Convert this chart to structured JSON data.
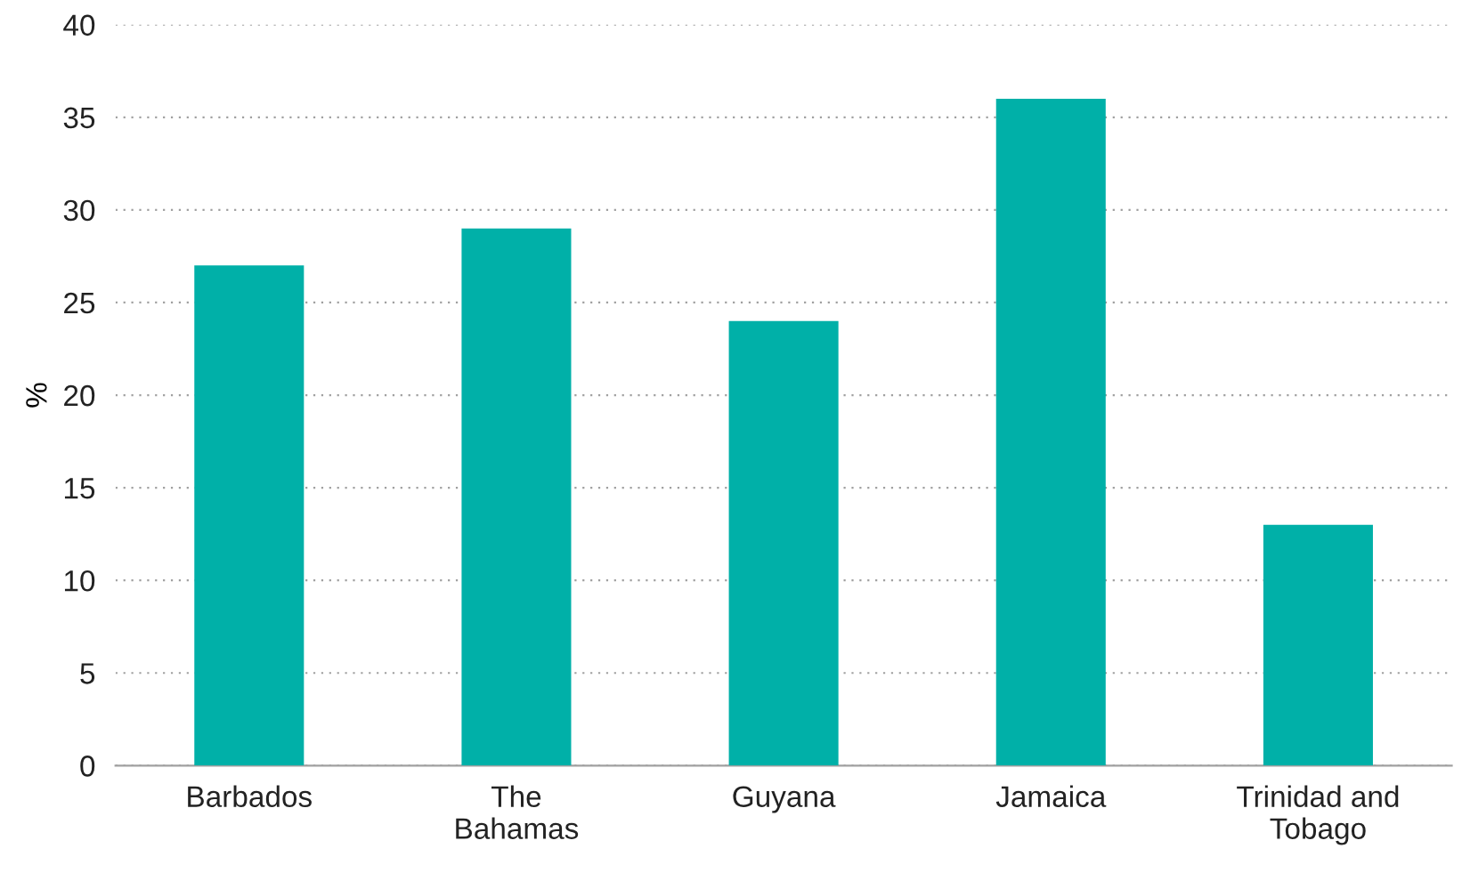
{
  "chart_data": {
    "type": "bar",
    "ylabel": "%",
    "categories": [
      "Barbados",
      "The\nBahamas",
      "Guyana",
      "Jamaica",
      "Trinidad and\nTobago"
    ],
    "values": [
      27,
      29,
      24,
      36,
      13
    ],
    "color": "#00b0a8",
    "ylim": [
      0,
      40
    ],
    "yticks": [
      0,
      5,
      10,
      15,
      20,
      25,
      30,
      35,
      40
    ],
    "grid": "y",
    "legend": false
  }
}
